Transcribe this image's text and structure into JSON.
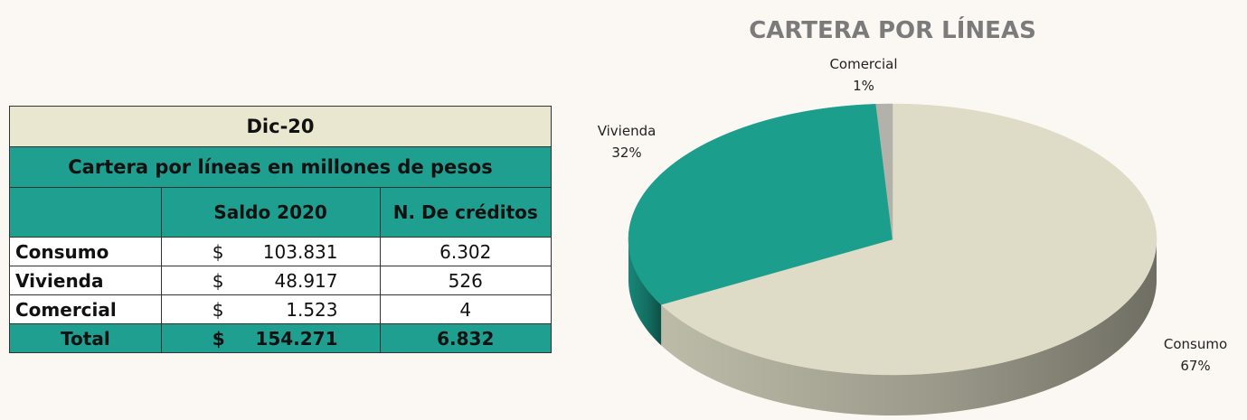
{
  "table": {
    "title": "Dic-20",
    "subtitle": "Cartera por líneas en millones de pesos",
    "headers": [
      "Saldo 2020",
      "N. De créditos"
    ],
    "rows": [
      {
        "label": "Consumo",
        "currency": "$",
        "saldo": "103.831",
        "creditos": "6.302"
      },
      {
        "label": "Vivienda",
        "currency": "$",
        "saldo": "48.917",
        "creditos": "526"
      },
      {
        "label": "Comercial",
        "currency": "$",
        "saldo": "1.523",
        "creditos": "4"
      }
    ],
    "total": {
      "label": "Total",
      "currency": "$",
      "saldo": "154.271",
      "creditos": "6.832"
    }
  },
  "chart_data": {
    "type": "pie",
    "title": "CARTERA POR LÍNEAS",
    "categories": [
      "Consumo",
      "Vivienda",
      "Comercial"
    ],
    "values": [
      67,
      32,
      1
    ],
    "value_labels": [
      "67%",
      "32%",
      "1%"
    ],
    "colors": [
      "#dedcc6",
      "#1c9e8d",
      "#b3b2aa"
    ]
  }
}
